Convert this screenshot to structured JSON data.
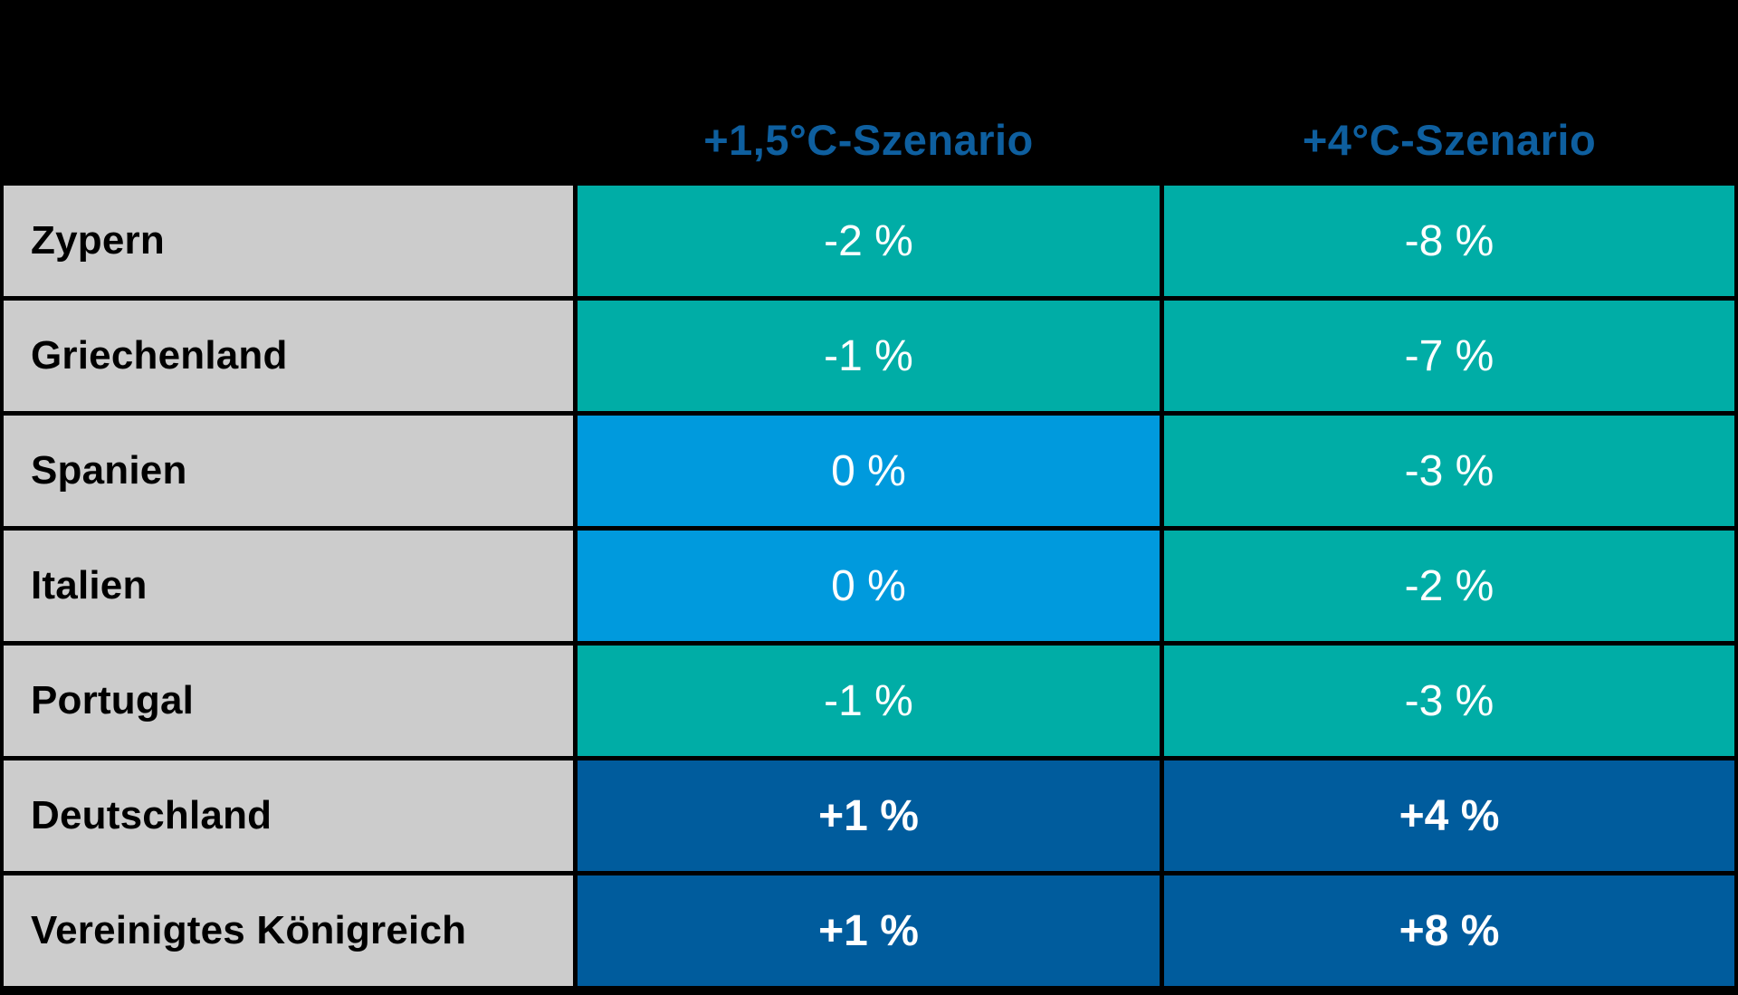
{
  "colors": {
    "background": "#000000",
    "header_text": "#0E5F9F",
    "country_cell_bg": "#CCCCCC",
    "country_text": "#000000",
    "negative_cell_bg": "#00ADA6",
    "zero_cell_bg": "#009ADD",
    "positive_cell_bg": "#005C9D",
    "value_text": "#FFFFFF"
  },
  "chart_data": {
    "type": "table",
    "columns": [
      "",
      "+1,5°C-Szenario",
      "+4°C-Szenario"
    ],
    "rows": [
      {
        "label": "Zypern",
        "s15": "-2 %",
        "s4": "-8 %"
      },
      {
        "label": "Griechenland",
        "s15": "-1 %",
        "s4": "-7 %"
      },
      {
        "label": "Spanien",
        "s15": "0 %",
        "s4": "-3 %"
      },
      {
        "label": "Italien",
        "s15": "0 %",
        "s4": "-2 %"
      },
      {
        "label": "Portugal",
        "s15": "-1 %",
        "s4": "-3 %"
      },
      {
        "label": "Deutschland",
        "s15": "+1 %",
        "s4": "+4 %"
      },
      {
        "label": "Vereinigtes Königreich",
        "s15": "+1 %",
        "s4": "+8 %"
      }
    ],
    "values_numeric": {
      "scenario_1_5c": [
        -2,
        -1,
        0,
        0,
        -1,
        1,
        1
      ],
      "scenario_4c": [
        -8,
        -7,
        -3,
        -2,
        -3,
        4,
        8
      ]
    },
    "color_coding": {
      "negative_value": "#00ADA6",
      "zero_value": "#009ADD",
      "positive_value": "#005C9D"
    }
  }
}
